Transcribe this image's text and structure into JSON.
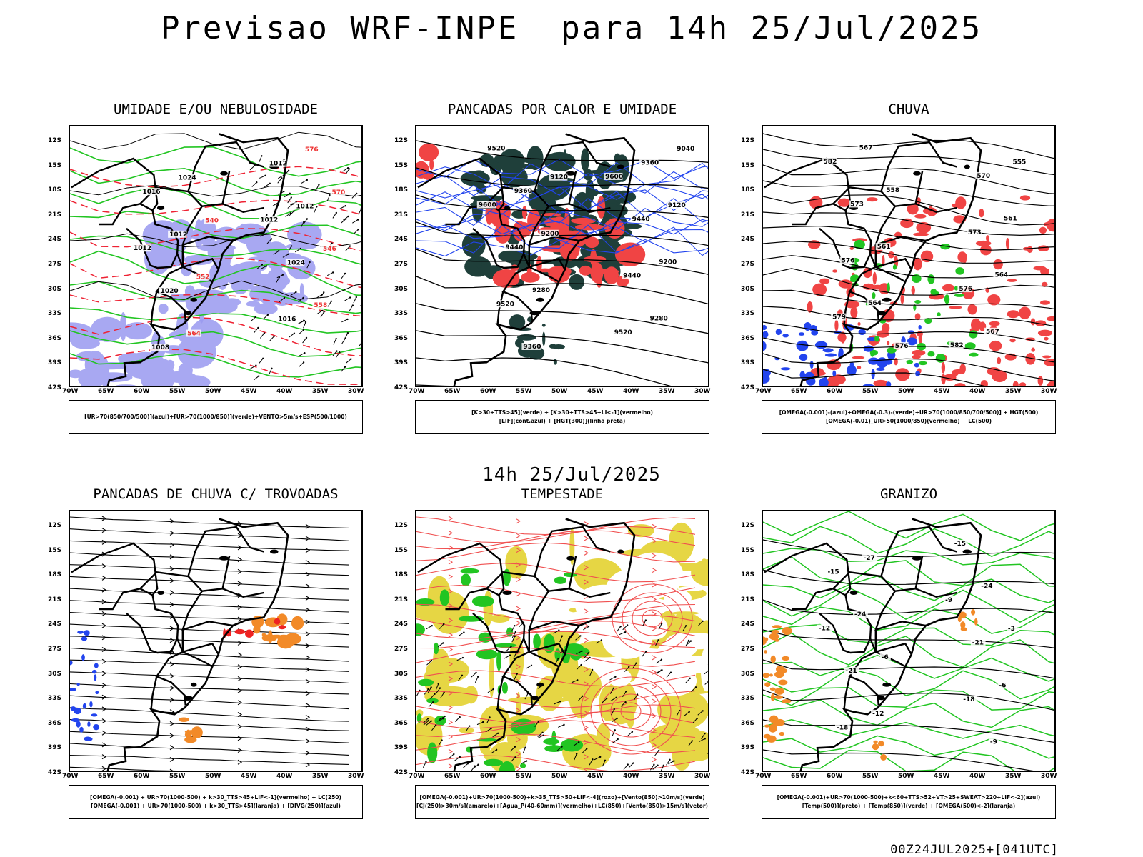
{
  "header": {
    "title": "Previsao WRF-INPE  para 14h 25/Jul/2025",
    "subtitle": "14h 25/Jul/2025",
    "footer": "00Z24JUL2025+[041UTC]"
  },
  "axes": {
    "lat": [
      "12S",
      "15S",
      "18S",
      "21S",
      "24S",
      "27S",
      "30S",
      "33S",
      "36S",
      "39S",
      "42S"
    ],
    "lon": [
      "70W",
      "65W",
      "60W",
      "55W",
      "50W",
      "45W",
      "40W",
      "35W",
      "30W"
    ]
  },
  "panels": [
    {
      "title": "UMIDADE E/OU NEBULOSIDADE",
      "legend": [
        "[UR>70(850/700/500)](azul)+[UR>70(1000/850)](verde)+VENTO>5m/s+ESP(500/1000)"
      ],
      "labels": [
        {
          "t": "1012",
          "c": "#000"
        },
        {
          "t": "1012",
          "c": "#000"
        },
        {
          "t": "1016",
          "c": "#000"
        },
        {
          "t": "1012",
          "c": "#000"
        },
        {
          "t": "1008",
          "c": "#000"
        },
        {
          "t": "1016",
          "c": "#000"
        },
        {
          "t": "1020",
          "c": "#000"
        },
        {
          "t": "1024",
          "c": "#000"
        },
        {
          "t": "1012",
          "c": "#000"
        },
        {
          "t": "1012",
          "c": "#000"
        },
        {
          "t": "1024",
          "c": "#000"
        },
        {
          "t": "576",
          "c": "#e33"
        },
        {
          "t": "564",
          "c": "#e33"
        },
        {
          "t": "558",
          "c": "#e33"
        },
        {
          "t": "552",
          "c": "#e33"
        },
        {
          "t": "546",
          "c": "#e33"
        },
        {
          "t": "540",
          "c": "#e33"
        },
        {
          "t": "570",
          "c": "#e33"
        }
      ]
    },
    {
      "title": "PANCADAS POR CALOR E UMIDADE",
      "legend": [
        "[K>30+TTS>45](verde) + [K>30+TTS>45+LI<-1](vermelho)",
        "[LIF](cont.azul) + [HGT(300)](linha preta)"
      ],
      "labels": [
        {
          "t": "9600",
          "c": "#000"
        },
        {
          "t": "9600",
          "c": "#000"
        },
        {
          "t": "9520",
          "c": "#000"
        },
        {
          "t": "9520",
          "c": "#000"
        },
        {
          "t": "9520",
          "c": "#000"
        },
        {
          "t": "9440",
          "c": "#000"
        },
        {
          "t": "9440",
          "c": "#000"
        },
        {
          "t": "9440",
          "c": "#000"
        },
        {
          "t": "9360",
          "c": "#000"
        },
        {
          "t": "9360",
          "c": "#000"
        },
        {
          "t": "9360",
          "c": "#000"
        },
        {
          "t": "9280",
          "c": "#000"
        },
        {
          "t": "9280",
          "c": "#000"
        },
        {
          "t": "9200",
          "c": "#000"
        },
        {
          "t": "9200",
          "c": "#000"
        },
        {
          "t": "9120",
          "c": "#000"
        },
        {
          "t": "9120",
          "c": "#000"
        },
        {
          "t": "9040",
          "c": "#000"
        }
      ]
    },
    {
      "title": "CHUVA",
      "legend": [
        "[OMEGA(-0.001)-(azul)+OMEGA(-0.3)-(verde)+UR>70(1000/850/700/500)] + HGT(500)",
        "[OMEGA(-0.01)_UR>50(1000/850)(vermelho) + LC(500)"
      ],
      "labels": [
        {
          "t": "582",
          "c": "#000"
        },
        {
          "t": "582",
          "c": "#000"
        },
        {
          "t": "579",
          "c": "#000"
        },
        {
          "t": "576",
          "c": "#000"
        },
        {
          "t": "576",
          "c": "#000"
        },
        {
          "t": "573",
          "c": "#000"
        },
        {
          "t": "573",
          "c": "#000"
        },
        {
          "t": "570",
          "c": "#000"
        },
        {
          "t": "567",
          "c": "#000"
        },
        {
          "t": "567",
          "c": "#000"
        },
        {
          "t": "564",
          "c": "#000"
        },
        {
          "t": "564",
          "c": "#000"
        },
        {
          "t": "561",
          "c": "#000"
        },
        {
          "t": "561",
          "c": "#000"
        },
        {
          "t": "558",
          "c": "#000"
        },
        {
          "t": "555",
          "c": "#000"
        },
        {
          "t": "576",
          "c": "#000"
        }
      ]
    },
    {
      "title": "PANCADAS DE CHUVA C/ TROVOADAS",
      "legend": [
        "[OMEGA(-0.001) + UR>70(1000-500) + k>30_TTS>45+LIF<-1](vermelho) + LC(250)",
        "[OMEGA(-0.001) + UR>70(1000-500) + k>30_TTS>45](laranja) + [DIVG(250)](azul)"
      ],
      "labels": []
    },
    {
      "title": "TEMPESTADE",
      "legend": [
        "[OMEGA(-0.001)+UR>70(1000-500)+k>35_TTS>50+LIF<-4](roxo)+[Vento(850)>10m/s](verde)",
        "[CJ(250)>30m/s](amarelo)+[Agua_P(40-60mm)](vermelho)+LC(850)+[Vento(850)>15m/s](vetor)"
      ],
      "labels": []
    },
    {
      "title": "GRANIZO",
      "legend": [
        "[OMEGA(-0.001)+UR>70(1000-500)+k<60+TTS>52+VT>25+SWEAT>220+LIF<-2](azul)",
        "[Temp(500)](preto) + [Temp(850)](verde) + [OMEGA(500)<-2](laranja)"
      ],
      "labels": [
        {
          "t": "-12",
          "c": "#000"
        },
        {
          "t": "-9",
          "c": "#000"
        },
        {
          "t": "-15",
          "c": "#000"
        },
        {
          "t": "-15",
          "c": "#000"
        },
        {
          "t": "-18",
          "c": "#000"
        },
        {
          "t": "-18",
          "c": "#000"
        },
        {
          "t": "-21",
          "c": "#000"
        },
        {
          "t": "-21",
          "c": "#000"
        },
        {
          "t": "-24",
          "c": "#000"
        },
        {
          "t": "-24",
          "c": "#000"
        },
        {
          "t": "-27",
          "c": "#000"
        },
        {
          "t": "-9",
          "c": "#000"
        },
        {
          "t": "-12",
          "c": "#000"
        },
        {
          "t": "-6",
          "c": "#000"
        },
        {
          "t": "-6",
          "c": "#000"
        },
        {
          "t": "-3",
          "c": "#000"
        }
      ]
    }
  ]
}
